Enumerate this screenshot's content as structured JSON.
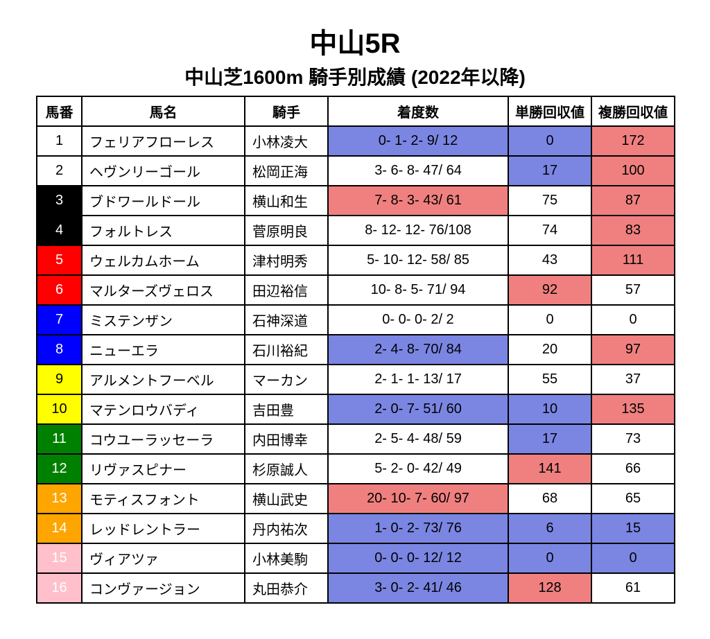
{
  "title_main": "中山5R",
  "title_sub": "中山芝1600m 騎手別成績 (2022年以降)",
  "headers": {
    "num": "馬番",
    "name": "馬名",
    "jockey": "騎手",
    "record": "着度数",
    "tansho": "単勝回収値",
    "fukusho": "複勝回収値"
  },
  "colors": {
    "white": {
      "bg": "#ffffff",
      "fg": "#000000"
    },
    "black": {
      "bg": "#000000",
      "fg": "#ffffff"
    },
    "red": {
      "bg": "#ff0000",
      "fg": "#ffffff"
    },
    "blue": {
      "bg": "#0000ff",
      "fg": "#ffffff"
    },
    "yellow": {
      "bg": "#ffff00",
      "fg": "#000000"
    },
    "green": {
      "bg": "#008000",
      "fg": "#ffffff"
    },
    "orange": {
      "bg": "#ffa500",
      "fg": "#ffffff"
    },
    "pink": {
      "bg": "#ffc0cb",
      "fg": "#ffffff"
    },
    "hl_blue": {
      "bg": "#7b86e3",
      "fg": "#000000"
    },
    "hl_red": {
      "bg": "#f08080",
      "fg": "#000000"
    },
    "plain": {
      "bg": "#ffffff",
      "fg": "#000000"
    }
  },
  "rows": [
    {
      "num": "1",
      "num_color": "white",
      "name": "フェリアフローレス",
      "jockey": "小林凌大",
      "record": "0-  1-  2-  9/ 12",
      "record_hl": "hl_blue",
      "tansho": "0",
      "tansho_hl": "hl_blue",
      "fukusho": "172",
      "fukusho_hl": "hl_red"
    },
    {
      "num": "2",
      "num_color": "white",
      "name": "ヘヴンリーゴール",
      "jockey": "松岡正海",
      "record": "3-  6-  8- 47/ 64",
      "record_hl": "plain",
      "tansho": "17",
      "tansho_hl": "hl_blue",
      "fukusho": "100",
      "fukusho_hl": "hl_red"
    },
    {
      "num": "3",
      "num_color": "black",
      "name": "ブドワールドール",
      "jockey": "横山和生",
      "record": "7-  8-  3- 43/ 61",
      "record_hl": "hl_red",
      "tansho": "75",
      "tansho_hl": "plain",
      "fukusho": "87",
      "fukusho_hl": "hl_red"
    },
    {
      "num": "4",
      "num_color": "black",
      "name": "フォルトレス",
      "jockey": "菅原明良",
      "record": "8- 12- 12- 76/108",
      "record_hl": "plain",
      "tansho": "74",
      "tansho_hl": "plain",
      "fukusho": "83",
      "fukusho_hl": "hl_red"
    },
    {
      "num": "5",
      "num_color": "red",
      "name": "ウェルカムホーム",
      "jockey": "津村明秀",
      "record": "5- 10- 12- 58/ 85",
      "record_hl": "plain",
      "tansho": "43",
      "tansho_hl": "plain",
      "fukusho": "111",
      "fukusho_hl": "hl_red"
    },
    {
      "num": "6",
      "num_color": "red",
      "name": "マルターズヴェロス",
      "jockey": "田辺裕信",
      "record": "10-  8-  5- 71/ 94",
      "record_hl": "plain",
      "tansho": "92",
      "tansho_hl": "hl_red",
      "fukusho": "57",
      "fukusho_hl": "plain"
    },
    {
      "num": "7",
      "num_color": "blue",
      "name": "ミステンザン",
      "jockey": "石神深道",
      "record": "0-  0-  0-  2/  2",
      "record_hl": "plain",
      "tansho": "0",
      "tansho_hl": "plain",
      "fukusho": "0",
      "fukusho_hl": "plain"
    },
    {
      "num": "8",
      "num_color": "blue",
      "name": "ニューエラ",
      "jockey": "石川裕紀",
      "record": "2-  4-  8- 70/ 84",
      "record_hl": "hl_blue",
      "tansho": "20",
      "tansho_hl": "plain",
      "fukusho": "97",
      "fukusho_hl": "hl_red"
    },
    {
      "num": "9",
      "num_color": "yellow",
      "name": "アルメントフーベル",
      "jockey": "マーカン",
      "record": "2-  1-  1- 13/ 17",
      "record_hl": "plain",
      "tansho": "55",
      "tansho_hl": "plain",
      "fukusho": "37",
      "fukusho_hl": "plain"
    },
    {
      "num": "10",
      "num_color": "yellow",
      "name": "マテンロウバディ",
      "jockey": "吉田豊",
      "record": "2-  0-  7- 51/ 60",
      "record_hl": "hl_blue",
      "tansho": "10",
      "tansho_hl": "hl_blue",
      "fukusho": "135",
      "fukusho_hl": "hl_red"
    },
    {
      "num": "11",
      "num_color": "green",
      "name": "コウユーラッセーラ",
      "jockey": "内田博幸",
      "record": "2-  5-  4- 48/ 59",
      "record_hl": "plain",
      "tansho": "17",
      "tansho_hl": "hl_blue",
      "fukusho": "73",
      "fukusho_hl": "plain"
    },
    {
      "num": "12",
      "num_color": "green",
      "name": "リヴァスピナー",
      "jockey": "杉原誠人",
      "record": "5-  2-  0- 42/ 49",
      "record_hl": "plain",
      "tansho": "141",
      "tansho_hl": "hl_red",
      "fukusho": "66",
      "fukusho_hl": "plain"
    },
    {
      "num": "13",
      "num_color": "orange",
      "name": "モティスフォント",
      "jockey": "横山武史",
      "record": "20- 10-  7- 60/ 97",
      "record_hl": "hl_red",
      "tansho": "68",
      "tansho_hl": "plain",
      "fukusho": "65",
      "fukusho_hl": "plain"
    },
    {
      "num": "14",
      "num_color": "orange",
      "name": "レッドレントラー",
      "jockey": "丹内祐次",
      "record": "1-  0-  2- 73/ 76",
      "record_hl": "hl_blue",
      "tansho": "6",
      "tansho_hl": "hl_blue",
      "fukusho": "15",
      "fukusho_hl": "hl_blue"
    },
    {
      "num": "15",
      "num_color": "pink",
      "name": "ヴィアツァ",
      "jockey": "小林美駒",
      "record": "0-  0-  0- 12/ 12",
      "record_hl": "hl_blue",
      "tansho": "0",
      "tansho_hl": "hl_blue",
      "fukusho": "0",
      "fukusho_hl": "hl_blue"
    },
    {
      "num": "16",
      "num_color": "pink",
      "name": "コンヴァージョン",
      "jockey": "丸田恭介",
      "record": "3-  0-  2- 41/ 46",
      "record_hl": "hl_blue",
      "tansho": "128",
      "tansho_hl": "hl_red",
      "fukusho": "61",
      "fukusho_hl": "plain"
    }
  ]
}
